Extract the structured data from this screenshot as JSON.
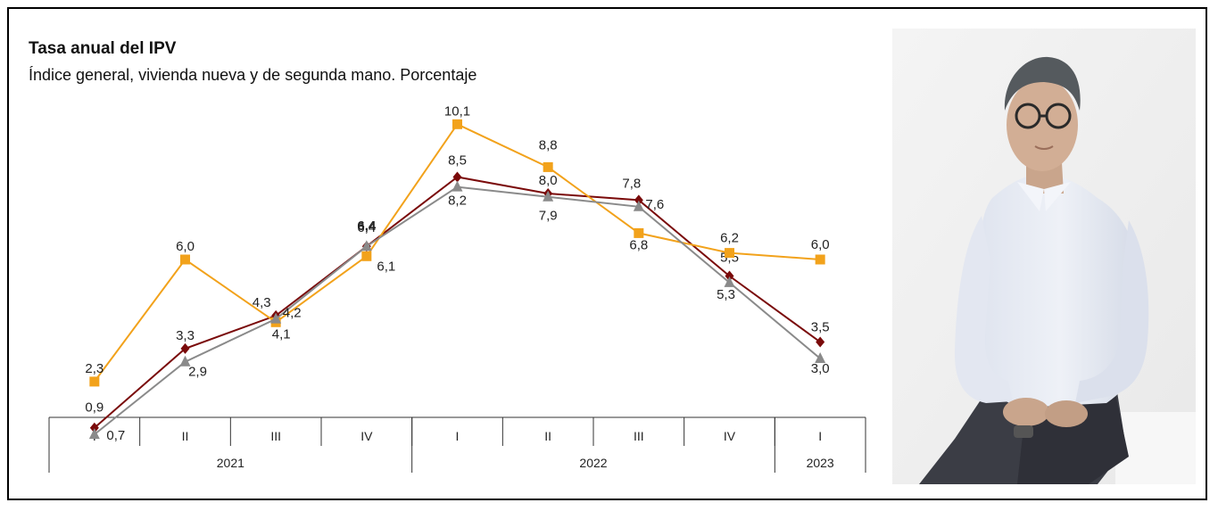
{
  "chart_data": {
    "type": "line",
    "title": "Tasa anual del IPV",
    "subtitle": "Índice general, vivienda nueva y de segunda mano. Porcentaje",
    "categories": [
      "I",
      "II",
      "III",
      "IV",
      "I",
      "II",
      "III",
      "IV",
      "I"
    ],
    "years": [
      {
        "label": "2021",
        "span": 4
      },
      {
        "label": "2022",
        "span": 4
      },
      {
        "label": "2023",
        "span": 1
      }
    ],
    "ylim": [
      0,
      11
    ],
    "grid": false,
    "legend": "none",
    "series": [
      {
        "key": "general",
        "color": "#7a0a0a",
        "marker": "diamond",
        "values": [
          0.9,
          3.3,
          4.3,
          6.4,
          8.5,
          8.0,
          7.8,
          5.5,
          3.5
        ],
        "labels": [
          "0,9",
          "3,3",
          "4,3",
          "6,4",
          "8,5",
          "8,0",
          "7,8",
          "5,5",
          "3,5"
        ]
      },
      {
        "key": "nueva",
        "color": "#f2a21b",
        "marker": "square",
        "values": [
          2.3,
          6.0,
          4.1,
          6.1,
          10.1,
          8.8,
          6.8,
          6.2,
          6.0
        ],
        "labels": [
          "2,3",
          "6,0",
          "4,1",
          "6,1",
          "10,1",
          "8,8",
          "6,8",
          "6,2",
          "6,0"
        ]
      },
      {
        "key": "segunda",
        "color": "#8a8a8a",
        "marker": "triangle",
        "values": [
          0.7,
          2.9,
          4.2,
          6.4,
          8.2,
          7.9,
          7.6,
          5.3,
          3.0
        ],
        "labels": [
          "0,7",
          "2,9",
          "4,2",
          "6,4",
          "8,2",
          "7,9",
          "7,6",
          "5,3",
          "3,0"
        ]
      }
    ]
  }
}
